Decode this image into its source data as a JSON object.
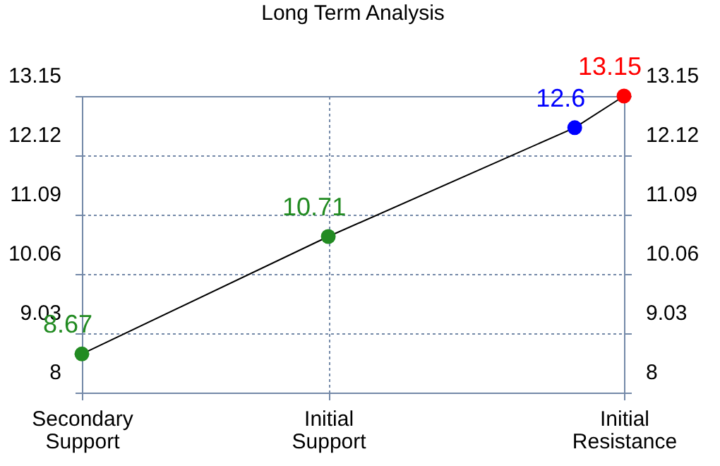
{
  "chart_data": {
    "type": "line",
    "title": "Long Term Analysis",
    "categories": [
      "Secondary Support",
      null,
      null,
      null,
      null,
      "Initial Support",
      null,
      null,
      null,
      null,
      null,
      "Initial Resistance"
    ],
    "series": [
      {
        "color": "#000000",
        "values": [
          8.67,
          null,
          null,
          null,
          null,
          10.71,
          null,
          null,
          null,
          null,
          12.6,
          13.15
        ],
        "colors": [
          "#228b22",
          null,
          null,
          null,
          null,
          "#228b22",
          null,
          null,
          null,
          null,
          "#0000ff",
          "#ff0000"
        ]
      }
    ],
    "ylim": [
      8,
      13.15
    ],
    "yticks": [
      8,
      9.03,
      10.06,
      11.09,
      12.12,
      13.15
    ],
    "y2lim": [
      8,
      13.15
    ],
    "y2ticks": [
      8,
      9.03,
      10.06,
      11.09,
      12.12,
      13.15
    ],
    "grid": true,
    "marker": "circle",
    "line_style": "solid",
    "data_labels": true
  }
}
